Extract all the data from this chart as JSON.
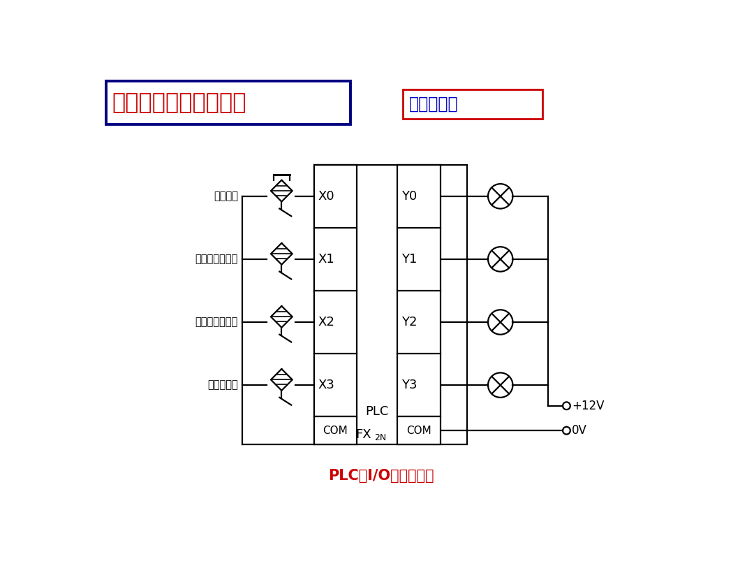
{
  "bg_color": "#ffffff",
  "title1_text": "表示接线信息的电气图",
  "title1_color": "#cc0000",
  "title1_box_color": "#000080",
  "title2_text": "端子接线图",
  "title2_color": "#0000cc",
  "title2_box_color": "#cc0000",
  "bottom_title": "PLC的I/O端子接线图",
  "bottom_title_color": "#cc0000",
  "input_labels": [
    "磁性开关",
    "电容式接近开关",
    "电感式接近开关",
    "光电传感器"
  ],
  "input_ports": [
    "X0",
    "X1",
    "X2",
    "X3"
  ],
  "output_ports": [
    "Y0",
    "Y1",
    "Y2",
    "Y3"
  ],
  "plc_label1": "PLC",
  "plc_label2": "FX",
  "plc_label2_sub": "2N",
  "com_label": "COM",
  "plus12v_label": "+12V",
  "zerov_label": "0V",
  "lw": 1.6
}
